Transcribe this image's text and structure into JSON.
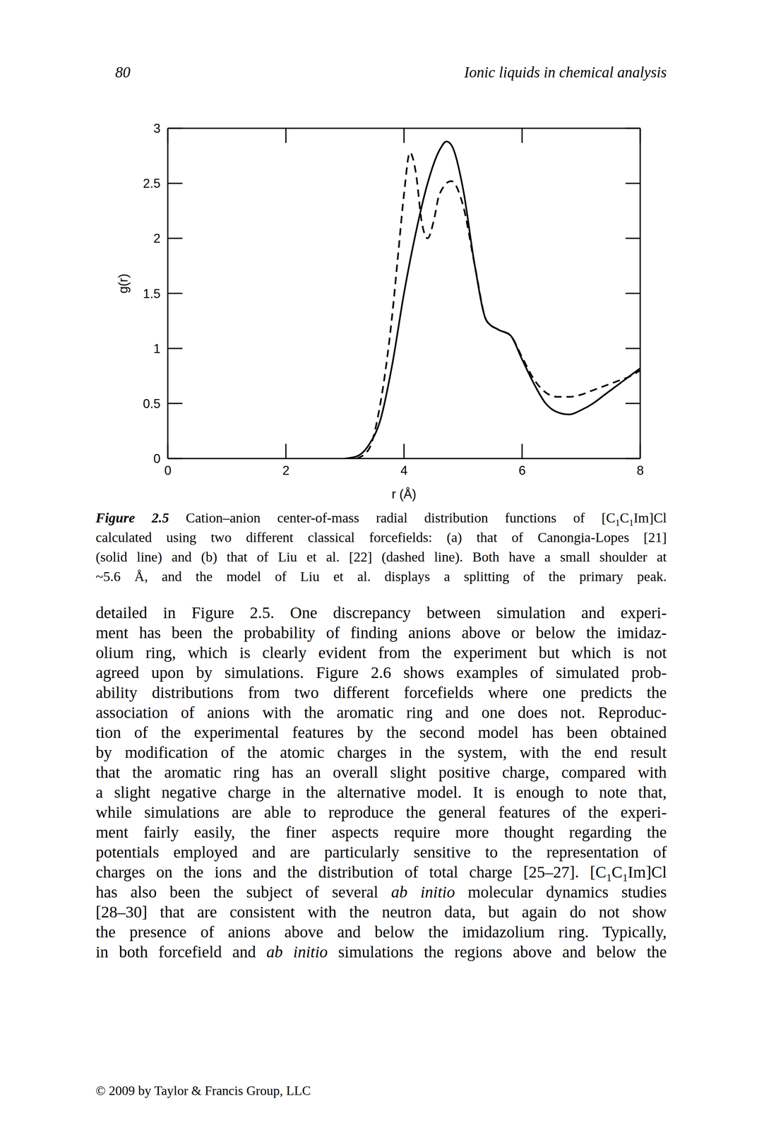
{
  "header": {
    "page_number": "80",
    "title": "Ionic liquids in chemical analysis"
  },
  "chart_data": {
    "type": "line",
    "xlabel": "r (Å)",
    "ylabel": "g(r)",
    "xlim": [
      0,
      8
    ],
    "ylim": [
      0,
      3
    ],
    "xticks": [
      0,
      2,
      4,
      6,
      8
    ],
    "yticks": [
      0,
      0.5,
      1,
      1.5,
      2,
      2.5,
      3
    ],
    "series": [
      {
        "color": "#000000",
        "line_style": "solid",
        "x": [
          3.0,
          3.2,
          3.4,
          3.6,
          3.8,
          4.0,
          4.2,
          4.4,
          4.6,
          4.72,
          4.8,
          5.0,
          5.2,
          5.4,
          5.6,
          5.8,
          6.0,
          6.2,
          6.4,
          6.6,
          6.8,
          7.0,
          7.2,
          7.4,
          7.6,
          7.8,
          8.0
        ],
        "values": [
          0,
          0.02,
          0.12,
          0.35,
          0.85,
          1.5,
          2.05,
          2.5,
          2.8,
          2.88,
          2.85,
          2.45,
          1.75,
          1.25,
          1.17,
          1.12,
          0.9,
          0.68,
          0.5,
          0.42,
          0.4,
          0.44,
          0.5,
          0.58,
          0.66,
          0.74,
          0.82
        ]
      },
      {
        "color": "#000000",
        "line_style": "dashed",
        "x": [
          3.2,
          3.4,
          3.6,
          3.8,
          3.9,
          4.0,
          4.1,
          4.2,
          4.3,
          4.4,
          4.5,
          4.6,
          4.8,
          5.0,
          5.2,
          5.4,
          5.6,
          5.8,
          6.0,
          6.2,
          6.4,
          6.6,
          6.8,
          7.0,
          7.2,
          7.4,
          7.6,
          7.8,
          8.0
        ],
        "values": [
          0,
          0.08,
          0.5,
          1.3,
          1.85,
          2.4,
          2.78,
          2.6,
          2.15,
          2.0,
          2.15,
          2.4,
          2.52,
          2.3,
          1.75,
          1.25,
          1.17,
          1.12,
          0.92,
          0.72,
          0.6,
          0.56,
          0.56,
          0.58,
          0.62,
          0.66,
          0.7,
          0.74,
          0.8
        ]
      }
    ]
  },
  "caption": {
    "label": "Figure 2.5",
    "lines": [
      "Cation–anion center-of-mass radial distribution functions of [C1C1Im]Cl",
      "calculated using two different classical forcefields: (a) that of Canongia-Lopes [21]",
      "(solid line) and (b) that of Liu et al. [22] (dashed line). Both have a small shoulder at",
      "~5.6 Å, and the model of Liu et al. displays a splitting of the primary peak."
    ]
  },
  "body": {
    "lines": [
      "detailed in Figure 2.5. One discrepancy between simulation and experi-",
      "ment has been the probability of finding anions above or below the imidaz-",
      "olium ring, which is clearly evident from the experiment but which is not",
      "agreed upon by simulations. Figure 2.6 shows examples of simulated prob-",
      "ability distributions from two different forcefields where one predicts the",
      "association of anions with the aromatic ring and one does not. Reproduc-",
      "tion of the experimental features by the second model has been obtained",
      "by modification of the atomic charges in the system, with the end result",
      "that the aromatic ring has an overall slight positive charge, compared with",
      "a slight negative charge in the alternative model. It is enough to note that,",
      "while simulations are able to reproduce the general features of the experi-",
      "ment fairly easily, the finer aspects require more thought regarding the",
      "potentials employed and are particularly sensitive to the representation of",
      "charges on the ions and the distribution of total charge [25–27]. [C1C1Im]Cl",
      "has also been the subject of several ab initio molecular dynamics studies",
      "[28–30] that are consistent with the neutron data, but again do not show",
      "the presence of anions above and below the imidazolium ring. Typically,",
      "in both forcefield and ab initio simulations the regions above and below the"
    ]
  },
  "formatting": {
    "italic": [
      "ab initio"
    ],
    "subscript_formula": "[C1C1Im]Cl"
  },
  "footer": "© 2009 by Taylor & Francis Group, LLC"
}
